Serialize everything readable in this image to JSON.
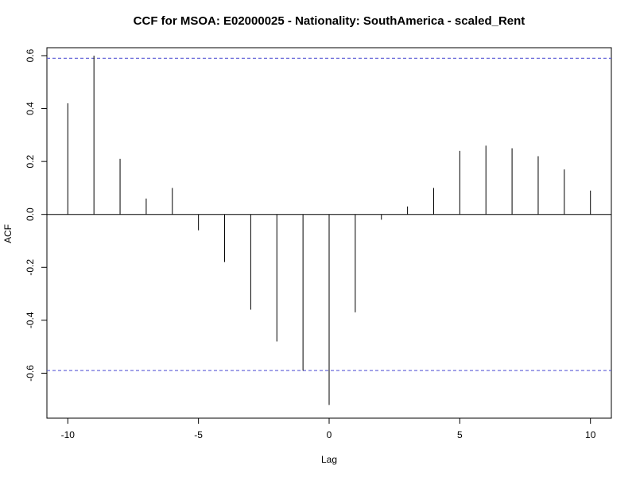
{
  "chart_data": {
    "type": "bar",
    "subtype": "ccf-spike",
    "title": "CCF for MSOA: E02000025 - Nationality: SouthAmerica - scaled_Rent",
    "xlabel": "Lag",
    "ylabel": "ACF",
    "x": [
      -10,
      -9,
      -8,
      -7,
      -6,
      -5,
      -4,
      -3,
      -2,
      -1,
      0,
      1,
      2,
      3,
      4,
      5,
      6,
      7,
      8,
      9,
      10
    ],
    "values": [
      0.42,
      0.6,
      0.21,
      0.06,
      0.1,
      -0.06,
      -0.18,
      -0.36,
      -0.48,
      -0.59,
      -0.72,
      -0.37,
      -0.02,
      0.03,
      0.1,
      0.24,
      0.26,
      0.25,
      0.22,
      0.17,
      0.09
    ],
    "xlim": [
      -10.8,
      10.8
    ],
    "ylim": [
      -0.77,
      0.63
    ],
    "x_ticks": [
      -10,
      -5,
      0,
      5,
      10
    ],
    "x_tick_labels": [
      "-10",
      "-5",
      "0",
      "5",
      "10"
    ],
    "y_ticks": [
      -0.6,
      -0.4,
      -0.2,
      0.0,
      0.2,
      0.4,
      0.6
    ],
    "y_tick_labels": [
      "-0.6",
      "-0.4",
      "-0.2",
      "0.0",
      "0.2",
      "0.4",
      "0.6"
    ],
    "confidence_bounds": [
      0.59,
      -0.59
    ],
    "colors": {
      "spikes": "#000000",
      "confidence": "#5b5bd6"
    },
    "grid": false,
    "legend": "none"
  }
}
